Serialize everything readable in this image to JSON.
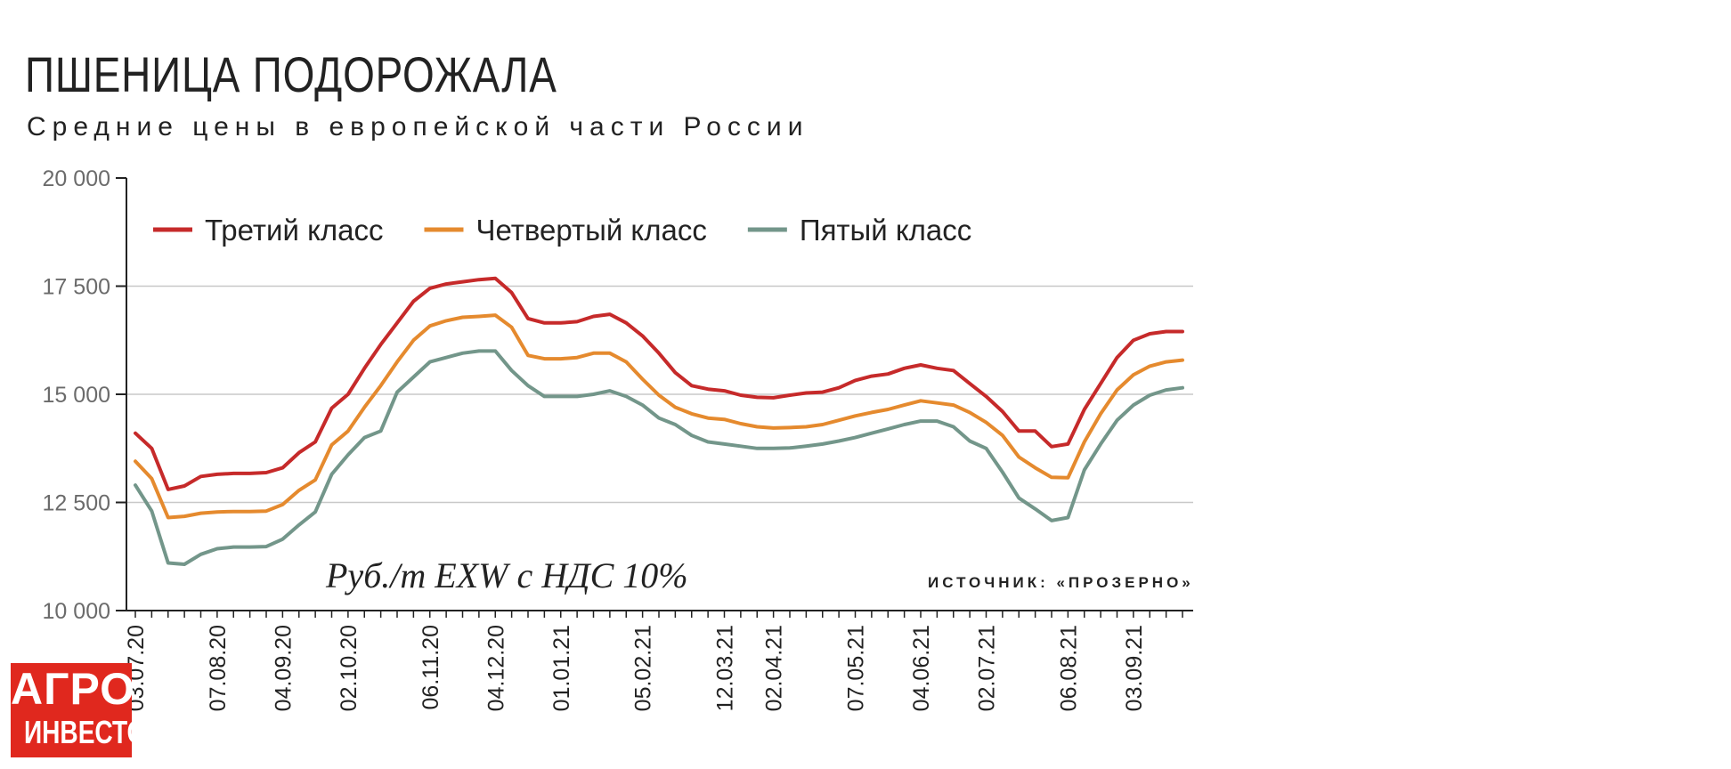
{
  "header": {
    "title": "ПШЕНИЦА ПОДОРОЖАЛА",
    "subtitle": "Средние цены в европейской части России"
  },
  "annotations": {
    "units": "Руб./т EXW с НДС 10%",
    "source": "ИСТОЧНИК: «ПРОЗЕРНО»"
  },
  "logo": {
    "line1": "АГРО",
    "line2": "ИНВЕСТОР"
  },
  "colors": {
    "third": "#c62a2a",
    "fourth": "#e58a2e",
    "fifth": "#73968a",
    "grid": "#c8c8c8",
    "axis": "#222222"
  },
  "chart_data": {
    "type": "line",
    "title": "ПШЕНИЦА ПОДОРОЖАЛА",
    "subtitle": "Средние цены в европейской части России",
    "ylabel": "Руб./т EXW с НДС 10%",
    "ylim": [
      10000,
      20000
    ],
    "yticks": [
      10000,
      12500,
      15000,
      17500,
      20000
    ],
    "ytick_labels": [
      "10 000",
      "12 500",
      "15 000",
      "17 500",
      "20 000"
    ],
    "grid": "horizontal",
    "legend_position": "top",
    "x_labels": [
      "03.07.20",
      "07.08.20",
      "04.09.20",
      "02.10.20",
      "06.11.20",
      "04.12.20",
      "01.01.21",
      "05.02.21",
      "12.03.21",
      "02.04.21",
      "07.05.21",
      "04.06.21",
      "02.07.21",
      "06.08.21",
      "03.09.21"
    ],
    "x": [
      "03.07.20",
      "10.07.20",
      "17.07.20",
      "24.07.20",
      "31.07.20",
      "07.08.20",
      "14.08.20",
      "21.08.20",
      "28.08.20",
      "04.09.20",
      "11.09.20",
      "18.09.20",
      "25.09.20",
      "02.10.20",
      "09.10.20",
      "16.10.20",
      "23.10.20",
      "30.10.20",
      "06.11.20",
      "13.11.20",
      "20.11.20",
      "27.11.20",
      "04.12.20",
      "11.12.20",
      "18.12.20",
      "25.12.20",
      "01.01.21",
      "08.01.21",
      "15.01.21",
      "22.01.21",
      "29.01.21",
      "05.02.21",
      "12.02.21",
      "19.02.21",
      "26.02.21",
      "05.03.21",
      "12.03.21",
      "19.03.21",
      "26.03.21",
      "02.04.21",
      "09.04.21",
      "16.04.21",
      "23.04.21",
      "30.04.21",
      "07.05.21",
      "14.05.21",
      "21.05.21",
      "28.05.21",
      "04.06.21",
      "11.06.21",
      "18.06.21",
      "25.06.21",
      "02.07.21",
      "09.07.21",
      "16.07.21",
      "23.07.21",
      "30.07.21",
      "06.08.21",
      "13.08.21",
      "20.08.21",
      "27.08.21",
      "03.09.21",
      "10.09.21",
      "17.09.21",
      "24.09.21"
    ],
    "series": [
      {
        "name": "Третий класс",
        "color": "#c62a2a",
        "values": [
          14100,
          13750,
          12800,
          12880,
          13100,
          13150,
          13170,
          13170,
          13190,
          13300,
          13650,
          13900,
          14680,
          15000,
          15600,
          16150,
          16650,
          17150,
          17450,
          17550,
          17600,
          17650,
          17680,
          17350,
          16750,
          16650,
          16650,
          16680,
          16800,
          16850,
          16650,
          16350,
          15950,
          15500,
          15200,
          15120,
          15080,
          14980,
          14930,
          14920,
          14980,
          15030,
          15050,
          15150,
          15320,
          15420,
          15470,
          15600,
          15680,
          15600,
          15550,
          15250,
          14950,
          14600,
          14150,
          14150,
          13790,
          13850,
          14650,
          15250,
          15850,
          16250,
          16400,
          16450,
          16450
        ]
      },
      {
        "name": "Четвертый класс",
        "color": "#e58a2e",
        "values": [
          13450,
          13050,
          12150,
          12180,
          12250,
          12280,
          12290,
          12290,
          12300,
          12450,
          12780,
          13020,
          13830,
          14150,
          14700,
          15200,
          15750,
          16250,
          16580,
          16700,
          16780,
          16800,
          16830,
          16550,
          15900,
          15820,
          15820,
          15850,
          15950,
          15950,
          15750,
          15350,
          14980,
          14700,
          14550,
          14450,
          14420,
          14320,
          14250,
          14220,
          14230,
          14250,
          14300,
          14400,
          14500,
          14580,
          14650,
          14750,
          14850,
          14800,
          14750,
          14580,
          14350,
          14050,
          13550,
          13300,
          13080,
          13070,
          13900,
          14550,
          15100,
          15450,
          15650,
          15750,
          15790
        ]
      },
      {
        "name": "Пятый класс",
        "color": "#73968a",
        "values": [
          12900,
          12300,
          11100,
          11070,
          11300,
          11430,
          11470,
          11470,
          11480,
          11650,
          11980,
          12280,
          13150,
          13600,
          14000,
          14150,
          15050,
          15400,
          15750,
          15850,
          15950,
          16000,
          16000,
          15550,
          15200,
          14950,
          14950,
          14950,
          15000,
          15080,
          14950,
          14750,
          14450,
          14300,
          14050,
          13900,
          13850,
          13800,
          13750,
          13750,
          13760,
          13800,
          13850,
          13920,
          14000,
          14100,
          14200,
          14300,
          14380,
          14380,
          14250,
          13920,
          13750,
          13200,
          12600,
          12350,
          12080,
          12150,
          13250,
          13850,
          14400,
          14750,
          14980,
          15100,
          15150
        ]
      }
    ]
  }
}
